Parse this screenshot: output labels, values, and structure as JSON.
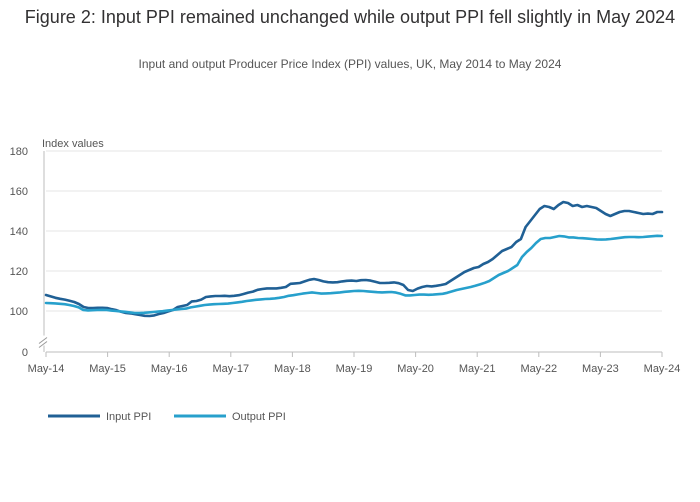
{
  "chart_data": {
    "type": "line",
    "title": "Figure 2: Input PPI remained unchanged while output PPI fell slightly in May 2024",
    "subtitle": "Input and output Producer Price Index (PPI) values, UK, May 2014 to May 2024",
    "ylabel": "Index values",
    "ylim": [
      0,
      180
    ],
    "yticks": [
      "0",
      "100",
      "120",
      "140",
      "160",
      "180"
    ],
    "axis_break": "between 0 and 100",
    "xticks": [
      "May-14",
      "May-15",
      "May-16",
      "May-17",
      "May-18",
      "May-19",
      "May-20",
      "May-21",
      "May-22",
      "May-23",
      "May-24"
    ],
    "legend_position": "bottom-left",
    "grid": true,
    "series": [
      {
        "name": "Input PPI",
        "color": "#206095",
        "values": [
          108.0,
          107.3,
          106.6,
          106.1,
          105.7,
          105.1,
          104.5,
          103.5,
          102.0,
          101.5,
          101.5,
          101.6,
          101.6,
          101.5,
          100.9,
          100.4,
          99.6,
          99.0,
          98.8,
          98.4,
          98.0,
          97.6,
          97.5,
          97.8,
          98.5,
          99.0,
          99.8,
          100.5,
          102.0,
          102.5,
          103.0,
          104.8,
          105.0,
          105.7,
          107.0,
          107.3,
          107.5,
          107.5,
          107.6,
          107.4,
          107.6,
          107.9,
          108.5,
          109.2,
          109.7,
          110.6,
          111.0,
          111.3,
          111.3,
          111.3,
          111.6,
          112.0,
          113.6,
          113.8,
          114.0,
          114.8,
          115.6,
          116.0,
          115.5,
          114.8,
          114.4,
          114.3,
          114.4,
          114.8,
          115.1,
          115.2,
          115.0,
          115.4,
          115.5,
          115.2,
          114.6,
          114.0,
          114.0,
          114.1,
          114.3,
          113.9,
          113.0,
          110.5,
          110.0,
          111.2,
          112.0,
          112.5,
          112.3,
          112.6,
          113.0,
          113.5,
          115.0,
          116.5,
          118.0,
          119.5,
          120.5,
          121.5,
          122.0,
          123.5,
          124.5,
          126.0,
          128.0,
          130.0,
          131.0,
          132.0,
          134.5,
          136.0,
          142.0,
          145.0,
          148.0,
          151.0,
          152.5,
          152.0,
          151.0,
          153.0,
          154.5,
          154.0,
          152.5,
          153.0,
          152.0,
          152.5,
          152.0,
          151.5,
          150.0,
          148.5,
          147.5,
          148.5,
          149.5,
          150.0,
          150.0,
          149.5,
          149.0,
          148.5,
          148.7,
          148.5,
          149.5,
          149.5
        ]
      },
      {
        "name": "Output PPI",
        "color": "#27a0cc",
        "values": [
          104.0,
          103.9,
          103.8,
          103.6,
          103.4,
          103.0,
          102.5,
          101.8,
          100.5,
          100.3,
          100.4,
          100.5,
          100.6,
          100.5,
          100.2,
          100.0,
          99.8,
          99.6,
          99.3,
          99.0,
          99.0,
          99.1,
          99.3,
          99.5,
          99.7,
          99.9,
          100.2,
          100.5,
          100.8,
          101.0,
          101.2,
          101.8,
          102.2,
          102.6,
          103.0,
          103.2,
          103.4,
          103.5,
          103.6,
          103.7,
          104.0,
          104.3,
          104.6,
          105.0,
          105.3,
          105.6,
          105.8,
          106.0,
          106.1,
          106.3,
          106.6,
          107.0,
          107.6,
          107.9,
          108.3,
          108.7,
          109.0,
          109.3,
          109.0,
          108.7,
          108.8,
          108.9,
          109.1,
          109.3,
          109.6,
          109.8,
          110.0,
          110.1,
          110.0,
          109.8,
          109.6,
          109.4,
          109.3,
          109.4,
          109.5,
          109.2,
          108.6,
          107.8,
          107.8,
          108.0,
          108.2,
          108.2,
          108.1,
          108.2,
          108.4,
          108.6,
          109.1,
          109.8,
          110.5,
          111.0,
          111.5,
          112.0,
          112.6,
          113.3,
          114.1,
          115.0,
          116.5,
          118.0,
          119.0,
          120.0,
          121.5,
          123.0,
          127.0,
          129.5,
          131.5,
          134.0,
          136.0,
          136.5,
          136.5,
          137.0,
          137.5,
          137.3,
          136.8,
          136.8,
          136.5,
          136.4,
          136.2,
          136.0,
          135.8,
          135.7,
          135.8,
          136.0,
          136.3,
          136.6,
          136.9,
          137.0,
          137.0,
          136.9,
          137.0,
          137.2,
          137.4,
          137.6,
          137.5
        ]
      }
    ]
  }
}
